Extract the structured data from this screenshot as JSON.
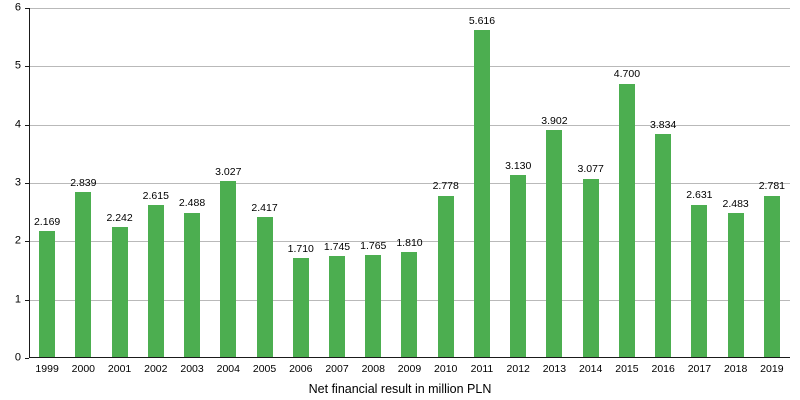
{
  "chart_data": {
    "type": "bar",
    "title": "",
    "xlabel": "Net financial result in million PLN",
    "ylabel": "",
    "categories": [
      "1999",
      "2000",
      "2001",
      "2002",
      "2003",
      "2004",
      "2005",
      "2006",
      "2007",
      "2008",
      "2009",
      "2010",
      "2011",
      "2012",
      "2013",
      "2014",
      "2015",
      "2016",
      "2017",
      "2018",
      "2019"
    ],
    "values": [
      2.169,
      2.839,
      2.242,
      2.615,
      2.488,
      3.027,
      2.417,
      1.71,
      1.745,
      1.765,
      1.81,
      2.778,
      5.616,
      3.13,
      3.902,
      3.077,
      4.7,
      3.834,
      2.631,
      2.483,
      2.781
    ],
    "value_labels": [
      "2.169",
      "2.839",
      "2.242",
      "2.615",
      "2.488",
      "3.027",
      "2.417",
      "1.710",
      "1.745",
      "1.765",
      "1.810",
      "2.778",
      "5.616",
      "3.130",
      "3.902",
      "3.077",
      "4.700",
      "3.834",
      "2.631",
      "2.483",
      "2.781"
    ],
    "ylim": [
      0,
      6
    ],
    "yticks": [
      0,
      1,
      2,
      3,
      4,
      5,
      6
    ],
    "grid": true,
    "legend": "none",
    "colors": {
      "bar": "#4cae50",
      "grid": "#b9b9b9",
      "axis": "#1a1a1a",
      "text": "#000000",
      "background": "#ffffff"
    }
  }
}
